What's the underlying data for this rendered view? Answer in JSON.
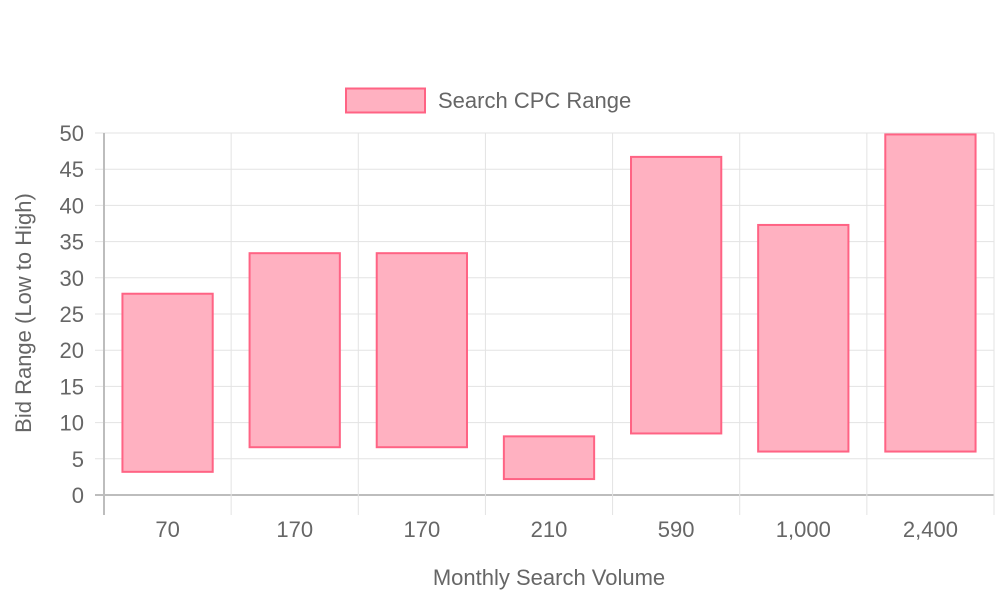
{
  "chart_data": {
    "type": "bar",
    "subtype": "floating-range",
    "title": "",
    "xlabel": "Monthly Search Volume",
    "ylabel": "Bid Range (Low to High)",
    "categories": [
      "70",
      "170",
      "170",
      "210",
      "590",
      "1,000",
      "2,400"
    ],
    "series": [
      {
        "name": "Search CPC Range",
        "ranges": [
          [
            3.2,
            27.8
          ],
          [
            6.6,
            33.4
          ],
          [
            6.6,
            33.4
          ],
          [
            2.2,
            8.1
          ],
          [
            8.5,
            46.7
          ],
          [
            6.0,
            37.3
          ],
          [
            6.0,
            49.8
          ]
        ],
        "fill_color": "#ffb1c1",
        "border_color": "#ff6384"
      }
    ],
    "ylim": [
      0,
      50
    ],
    "yticks": [
      "0",
      "5",
      "10",
      "15",
      "20",
      "25",
      "30",
      "35",
      "40",
      "45",
      "50"
    ],
    "grid": true,
    "legend_position": "top"
  }
}
